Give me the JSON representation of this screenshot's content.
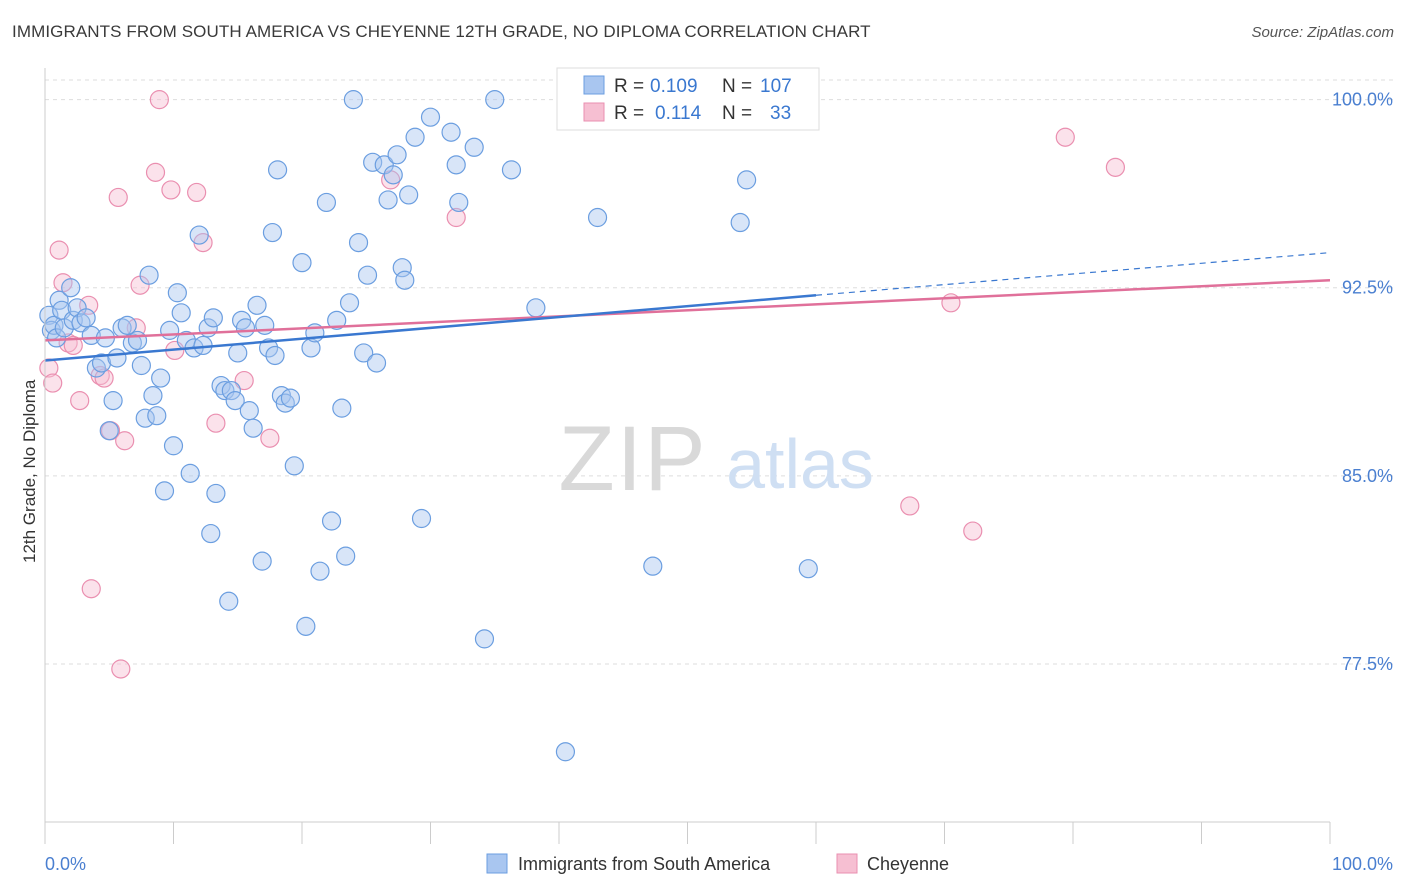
{
  "header": {
    "title": "IMMIGRANTS FROM SOUTH AMERICA VS CHEYENNE 12TH GRADE, NO DIPLOMA CORRELATION CHART",
    "source": "Source: ZipAtlas.com"
  },
  "watermark": {
    "zip": "ZIP",
    "atlas": "atlas"
  },
  "stats_legend": [
    {
      "r_label": "R =",
      "r_value": "0.109",
      "n_label": "N =",
      "n_value": "107"
    },
    {
      "r_label": "R =",
      "r_value": "0.114",
      "n_label": "N =",
      "n_value": "33"
    }
  ],
  "colors": {
    "blue_fill": "#a9c6f0",
    "blue_stroke": "#6b9ee0",
    "blue_line": "#3a78d0",
    "pink_fill": "#f6bfd2",
    "pink_stroke": "#ea8fb0",
    "pink_line": "#e0709a",
    "tick_text": "#4a7fd0",
    "grid": "#dddddd"
  },
  "chart_data": {
    "type": "scatter",
    "title": "IMMIGRANTS FROM SOUTH AMERICA VS CHEYENNE 12TH GRADE, NO DIPLOMA CORRELATION CHART",
    "xlabel": "",
    "ylabel": "12th Grade, No Diploma",
    "xlim": [
      0,
      100
    ],
    "ylim": [
      71.2,
      101.5
    ],
    "x_tick_labels": [
      "0.0%",
      "100.0%"
    ],
    "y_ticks": [
      77.5,
      85.0,
      92.5,
      100.0
    ],
    "y_tick_labels": [
      "77.5%",
      "85.0%",
      "92.5%",
      "100.0%"
    ],
    "grid": "horizontal dashed",
    "legend_position": "bottom-center",
    "series": [
      {
        "name": "Immigrants from South America",
        "r": 0.109,
        "n": 107,
        "color": "#a9c6f0",
        "trend": {
          "x": [
            0,
            60
          ],
          "y": [
            89.6,
            92.2
          ],
          "dashed_extension": {
            "x": [
              60,
              100
            ],
            "y": [
              92.2,
              93.9
            ]
          }
        },
        "points": [
          [
            0.3,
            91.4
          ],
          [
            0.5,
            90.8
          ],
          [
            0.7,
            91.0
          ],
          [
            0.9,
            90.5
          ],
          [
            1.1,
            92.0
          ],
          [
            1.3,
            91.6
          ],
          [
            1.5,
            90.9
          ],
          [
            2.0,
            92.5
          ],
          [
            2.2,
            91.2
          ],
          [
            2.5,
            91.7
          ],
          [
            2.8,
            91.1
          ],
          [
            3.2,
            91.3
          ],
          [
            3.6,
            90.6
          ],
          [
            4.0,
            89.3
          ],
          [
            4.4,
            89.5
          ],
          [
            4.7,
            90.5
          ],
          [
            5.0,
            86.8
          ],
          [
            5.3,
            88.0
          ],
          [
            5.6,
            89.7
          ],
          [
            6.0,
            90.9
          ],
          [
            6.4,
            91.0
          ],
          [
            6.8,
            90.3
          ],
          [
            7.2,
            90.4
          ],
          [
            7.5,
            89.4
          ],
          [
            7.8,
            87.3
          ],
          [
            8.1,
            93.0
          ],
          [
            8.4,
            88.2
          ],
          [
            8.7,
            87.4
          ],
          [
            9.0,
            88.9
          ],
          [
            9.3,
            84.4
          ],
          [
            9.7,
            90.8
          ],
          [
            10.0,
            86.2
          ],
          [
            10.3,
            92.3
          ],
          [
            10.6,
            91.5
          ],
          [
            11.0,
            90.4
          ],
          [
            11.3,
            85.1
          ],
          [
            11.6,
            90.1
          ],
          [
            12.0,
            94.6
          ],
          [
            12.3,
            90.2
          ],
          [
            12.7,
            90.9
          ],
          [
            12.9,
            82.7
          ],
          [
            13.1,
            91.3
          ],
          [
            13.3,
            84.3
          ],
          [
            13.7,
            88.6
          ],
          [
            14.0,
            88.4
          ],
          [
            14.3,
            80.0
          ],
          [
            14.5,
            88.4
          ],
          [
            14.8,
            88.0
          ],
          [
            15.0,
            89.9
          ],
          [
            15.3,
            91.2
          ],
          [
            15.6,
            90.9
          ],
          [
            15.9,
            87.6
          ],
          [
            16.2,
            86.9
          ],
          [
            16.5,
            91.8
          ],
          [
            16.9,
            81.6
          ],
          [
            17.1,
            91.0
          ],
          [
            17.4,
            90.1
          ],
          [
            17.7,
            94.7
          ],
          [
            17.9,
            89.8
          ],
          [
            18.1,
            97.2
          ],
          [
            18.4,
            88.2
          ],
          [
            18.7,
            87.9
          ],
          [
            19.1,
            88.1
          ],
          [
            19.4,
            85.4
          ],
          [
            20.0,
            93.5
          ],
          [
            20.3,
            79.0
          ],
          [
            20.7,
            90.1
          ],
          [
            21.0,
            90.7
          ],
          [
            21.4,
            81.2
          ],
          [
            21.9,
            95.9
          ],
          [
            22.3,
            83.2
          ],
          [
            22.7,
            91.2
          ],
          [
            23.1,
            87.7
          ],
          [
            23.4,
            81.8
          ],
          [
            23.7,
            91.9
          ],
          [
            24.0,
            100.0
          ],
          [
            24.4,
            94.3
          ],
          [
            24.8,
            89.9
          ],
          [
            25.1,
            93.0
          ],
          [
            25.5,
            97.5
          ],
          [
            25.8,
            89.5
          ],
          [
            26.4,
            97.4
          ],
          [
            26.7,
            96.0
          ],
          [
            27.1,
            97.0
          ],
          [
            27.4,
            97.8
          ],
          [
            27.8,
            93.3
          ],
          [
            28.0,
            92.8
          ],
          [
            28.3,
            96.2
          ],
          [
            28.8,
            98.5
          ],
          [
            29.3,
            83.3
          ],
          [
            30.0,
            99.3
          ],
          [
            31.6,
            98.7
          ],
          [
            32.0,
            97.4
          ],
          [
            32.2,
            95.9
          ],
          [
            33.4,
            98.1
          ],
          [
            34.2,
            78.5
          ],
          [
            35.0,
            100.0
          ],
          [
            36.3,
            97.2
          ],
          [
            38.2,
            91.7
          ],
          [
            40.5,
            74.0
          ],
          [
            43.0,
            95.3
          ],
          [
            47.3,
            81.4
          ],
          [
            54.1,
            95.1
          ],
          [
            54.6,
            96.8
          ],
          [
            59.4,
            81.3
          ]
        ]
      },
      {
        "name": "Cheyenne",
        "r": 0.114,
        "n": 33,
        "color": "#f6bfd2",
        "trend": {
          "x": [
            0,
            100
          ],
          "y": [
            90.4,
            92.8
          ]
        },
        "points": [
          [
            0.3,
            89.3
          ],
          [
            0.6,
            88.7
          ],
          [
            1.1,
            94.0
          ],
          [
            1.4,
            92.7
          ],
          [
            1.8,
            90.3
          ],
          [
            2.2,
            90.2
          ],
          [
            2.7,
            88.0
          ],
          [
            3.4,
            91.8
          ],
          [
            3.6,
            80.5
          ],
          [
            4.3,
            89.0
          ],
          [
            4.6,
            88.9
          ],
          [
            5.1,
            86.8
          ],
          [
            5.7,
            96.1
          ],
          [
            5.9,
            77.3
          ],
          [
            6.2,
            86.4
          ],
          [
            7.1,
            90.9
          ],
          [
            7.4,
            92.6
          ],
          [
            8.6,
            97.1
          ],
          [
            8.9,
            100.0
          ],
          [
            9.8,
            96.4
          ],
          [
            10.1,
            90.0
          ],
          [
            11.8,
            96.3
          ],
          [
            12.3,
            94.3
          ],
          [
            13.3,
            87.1
          ],
          [
            15.5,
            88.8
          ],
          [
            17.5,
            86.5
          ],
          [
            26.9,
            96.8
          ],
          [
            32.0,
            95.3
          ],
          [
            67.3,
            83.8
          ],
          [
            70.5,
            91.9
          ],
          [
            72.2,
            82.8
          ],
          [
            79.4,
            98.5
          ],
          [
            83.3,
            97.3
          ]
        ]
      }
    ]
  },
  "bottom_legend": [
    {
      "label": "Immigrants from South America"
    },
    {
      "label": "Cheyenne"
    }
  ]
}
